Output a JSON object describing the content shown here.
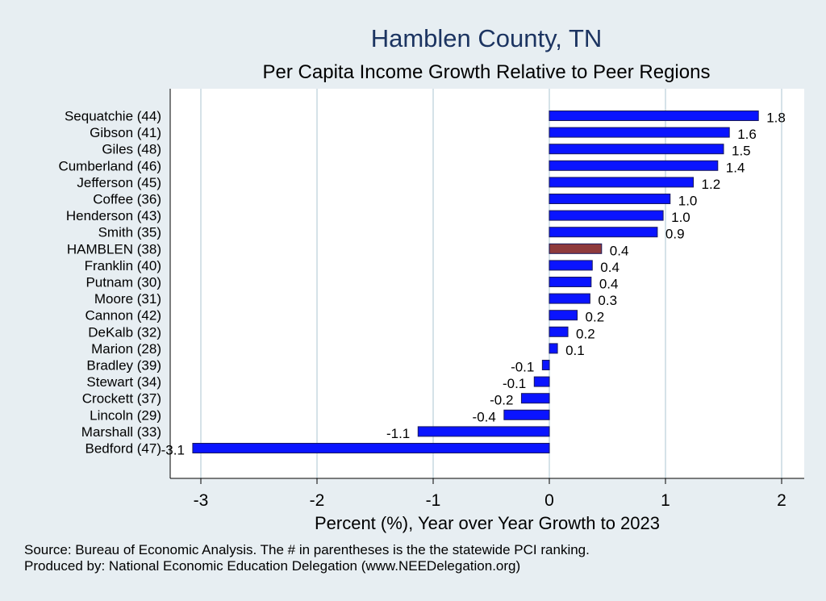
{
  "chart_data": {
    "type": "bar",
    "orientation": "horizontal",
    "title": "Hamblen County, TN",
    "subtitle": "Per Capita Income Growth Relative to Peer Regions",
    "xlabel": "Percent (%), Year over Year Growth to 2023",
    "ylabel": "",
    "xlim": [
      -3.2,
      2.2
    ],
    "xticks": [
      -3,
      -2,
      -1,
      0,
      1,
      2
    ],
    "grid": true,
    "categories": [
      "Sequatchie (44)",
      "Gibson (41)",
      "Giles (48)",
      "Cumberland (46)",
      "Jefferson (45)",
      "Coffee (36)",
      "Henderson (43)",
      "Smith (35)",
      "HAMBLEN (38)",
      "Franklin (40)",
      "Putnam (30)",
      "Moore (31)",
      "Cannon (42)",
      "DeKalb (32)",
      "Marion (28)",
      "Bradley (39)",
      "Stewart (34)",
      "Crockett (37)",
      "Lincoln (29)",
      "Marshall (33)",
      "Bedford (47)"
    ],
    "values": [
      1.8,
      1.55,
      1.5,
      1.45,
      1.24,
      1.04,
      0.98,
      0.93,
      0.45,
      0.37,
      0.36,
      0.35,
      0.24,
      0.16,
      0.07,
      -0.06,
      -0.13,
      -0.24,
      -0.39,
      -1.13,
      -3.07
    ],
    "labels": [
      "1.8",
      "1.6",
      "1.5",
      "1.4",
      "1.2",
      "1.0",
      "1.0",
      "0.9",
      "0.4",
      "0.4",
      "0.4",
      "0.3",
      "0.2",
      "0.2",
      "0.1",
      "-0.1",
      "-0.1",
      "-0.2",
      "-0.4",
      "-1.1",
      "-3.1"
    ],
    "highlight": "HAMBLEN (38)",
    "colors": {
      "bar": "#0a14ff",
      "highlight": "#8f3a3c",
      "bar_edge": "#1a1a5a",
      "grid": "#d5e2e8",
      "plot_bg": "#ffffff",
      "page_bg": "#e7eef2",
      "title": "#1c3461"
    }
  },
  "footer": {
    "source": "Source: Bureau of Economic Analysis. The # in parentheses is the the statewide PCI ranking.",
    "produced_by": "Produced by: National Economic Education Delegation (www.NEEDelegation.org)"
  }
}
